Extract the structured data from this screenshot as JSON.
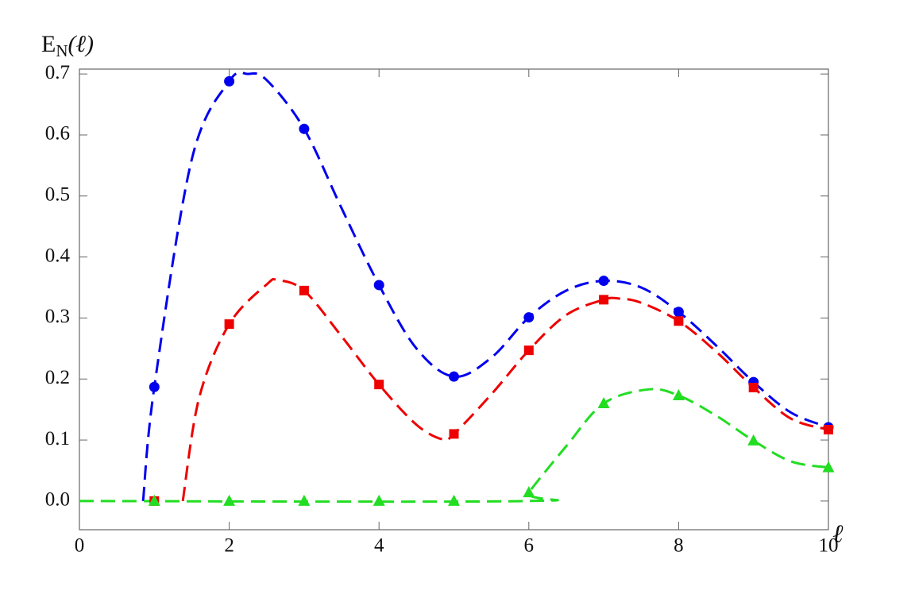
{
  "chart_data": {
    "type": "line",
    "y_label": {
      "base": "E",
      "sub": "N",
      "tail": "(ℓ)"
    },
    "x_label": "ℓ",
    "xlim": [
      0,
      10
    ],
    "ylim": [
      -0.047,
      0.708
    ],
    "xticks": [
      0,
      2,
      4,
      6,
      8,
      10
    ],
    "yticks": [
      {
        "value": 0,
        "label": "0.0"
      },
      0.1,
      0.2,
      0.3,
      0.4,
      0.5,
      0.6,
      0.7
    ],
    "x": [
      1,
      2,
      3,
      4,
      5,
      6,
      7,
      8,
      9,
      10
    ],
    "series": [
      {
        "color": "#0000ee",
        "marker": "circle",
        "values": [
          0.187,
          0.688,
          0.61,
          0.354,
          0.204,
          0.301,
          0.361,
          0.31,
          0.195,
          0.121
        ],
        "curve_x": [
          0.85,
          1,
          1.5,
          2,
          2.25,
          2.5,
          3,
          3.5,
          4,
          4.5,
          5,
          5.5,
          6,
          6.5,
          7,
          7.5,
          8,
          8.5,
          9,
          9.5,
          10
        ],
        "curve_values": [
          0,
          0.187,
          0.56,
          0.688,
          0.7,
          0.69,
          0.61,
          0.48,
          0.354,
          0.25,
          0.204,
          0.235,
          0.301,
          0.345,
          0.361,
          0.35,
          0.31,
          0.255,
          0.195,
          0.145,
          0.121
        ]
      },
      {
        "color": "#ee0000",
        "marker": "square",
        "values": [
          0,
          0.29,
          0.345,
          0.191,
          0.11,
          0.247,
          0.33,
          0.295,
          0.186,
          0.117
        ],
        "curve_x": [
          1.38,
          1.6,
          2,
          2.5,
          2.65,
          3,
          3.5,
          4,
          4.5,
          4.85,
          5,
          5.5,
          6,
          6.5,
          7,
          7.2,
          7.5,
          8,
          8.5,
          9,
          9.5,
          10
        ],
        "curve_values": [
          0,
          0.17,
          0.29,
          0.355,
          0.362,
          0.345,
          0.27,
          0.191,
          0.125,
          0.101,
          0.11,
          0.175,
          0.247,
          0.305,
          0.33,
          0.332,
          0.325,
          0.295,
          0.245,
          0.186,
          0.135,
          0.117
        ]
      },
      {
        "color": "#22dd22",
        "marker": "triangle",
        "values": [
          0,
          0,
          0,
          0,
          0,
          0.014,
          0.16,
          0.173,
          0.099,
          0.055
        ],
        "curve_x": [
          0,
          5.95,
          6,
          6.5,
          7,
          7.6,
          8,
          8.5,
          9,
          9.5,
          10
        ],
        "curve_values": [
          0,
          0,
          0.014,
          0.09,
          0.16,
          0.183,
          0.173,
          0.14,
          0.099,
          0.065,
          0.055
        ]
      }
    ]
  }
}
